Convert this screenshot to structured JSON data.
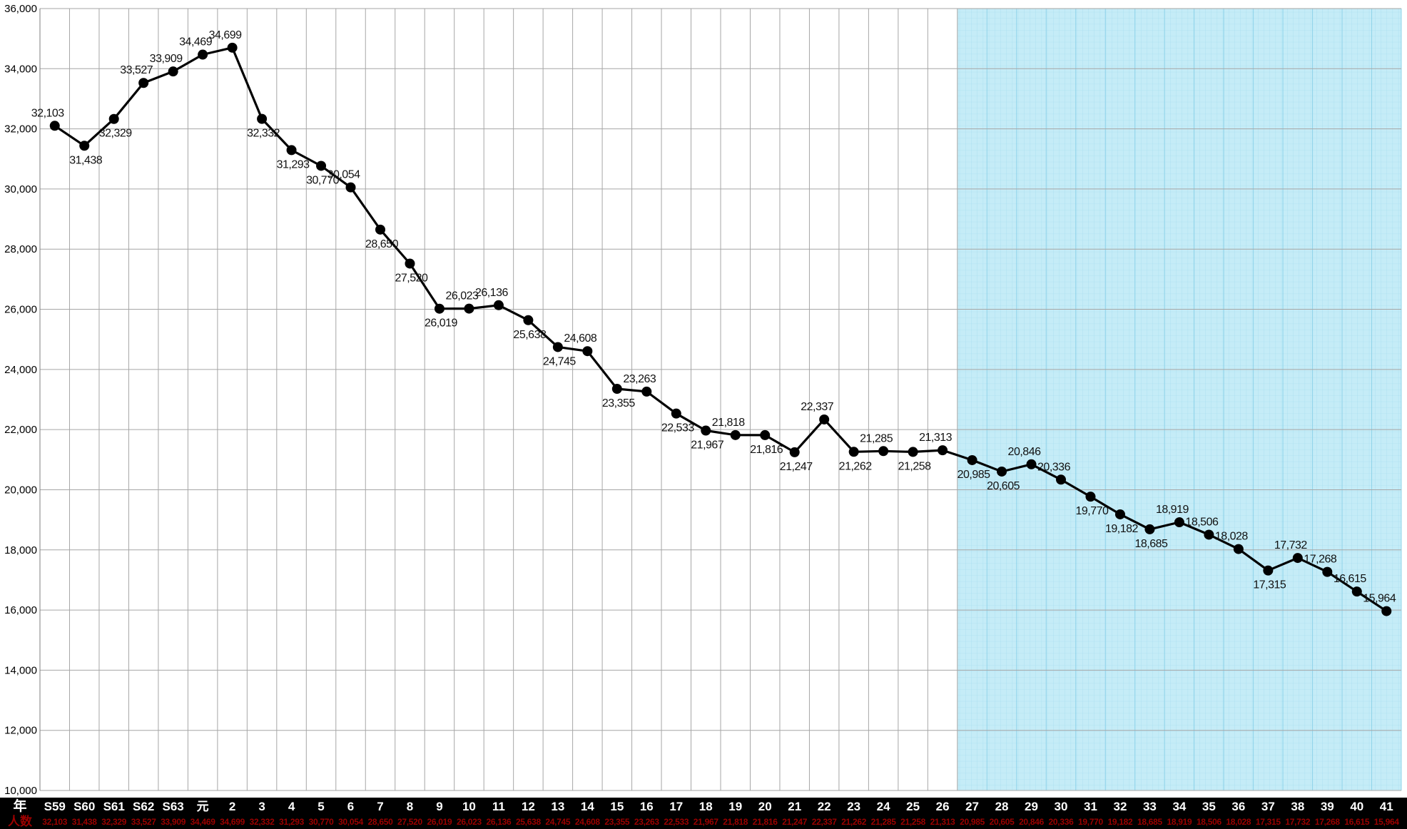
{
  "chart_data": {
    "type": "line",
    "title": "",
    "xlabel": "",
    "ylabel": "",
    "ylim": [
      10000,
      36000
    ],
    "ytick_step": 2000,
    "grid": true,
    "row_headers": {
      "year": "年",
      "count": "人数"
    },
    "categories": [
      "S59",
      "S60",
      "S61",
      "S62",
      "S63",
      "元",
      "2",
      "3",
      "4",
      "5",
      "6",
      "7",
      "8",
      "9",
      "10",
      "11",
      "12",
      "13",
      "14",
      "15",
      "16",
      "17",
      "18",
      "19",
      "20",
      "21",
      "22",
      "23",
      "24",
      "25",
      "26",
      "27",
      "28",
      "29",
      "30",
      "31",
      "32",
      "33",
      "34",
      "35",
      "36",
      "37",
      "38",
      "39",
      "40",
      "41"
    ],
    "values": [
      32103,
      31438,
      32329,
      33527,
      33909,
      34469,
      34699,
      32332,
      31293,
      30770,
      30054,
      28650,
      27520,
      26019,
      26023,
      26136,
      25638,
      24745,
      24608,
      23355,
      23263,
      22533,
      21967,
      21818,
      21816,
      21247,
      22337,
      21262,
      21285,
      21258,
      21313,
      20985,
      20605,
      20846,
      20336,
      19770,
      19182,
      18685,
      18919,
      18506,
      18028,
      17315,
      17732,
      17268,
      16615,
      15964
    ],
    "value_labels": [
      "32,103",
      "31,438",
      "32,329",
      "33,527",
      "33,909",
      "34,469",
      "34,699",
      "32,332",
      "31,293",
      "30,770",
      "30,054",
      "28,650",
      "27,520",
      "26,019",
      "26,023",
      "26,136",
      "25,638",
      "24,745",
      "24,608",
      "23,355",
      "23,263",
      "22,533",
      "21,967",
      "21,818",
      "21,816",
      "21,247",
      "22,337",
      "21,262",
      "21,285",
      "21,258",
      "21,313",
      "20,985",
      "20,605",
      "20,846",
      "20,336",
      "19,770",
      "19,182",
      "18,685",
      "18,919",
      "18,506",
      "18,028",
      "17,315",
      "17,732",
      "17,268",
      "16,615",
      "15,964"
    ],
    "label_positions": [
      "above",
      "below",
      "below",
      "above",
      "above",
      "above",
      "above",
      "below",
      "below",
      "below",
      "above",
      "below",
      "below",
      "below",
      "above",
      "above",
      "below",
      "below",
      "above",
      "below",
      "above",
      "below",
      "below",
      "above",
      "below",
      "below",
      "above",
      "below",
      "above",
      "below",
      "above",
      "below",
      "below",
      "above",
      "above",
      "below",
      "below",
      "below",
      "above",
      "above",
      "above",
      "below",
      "above",
      "above",
      "above",
      "above"
    ],
    "forecast_start_category": "27",
    "colors": {
      "line": "#000000",
      "marker": "#000000",
      "grid": "#a6a6a6",
      "forecast_fill": "#c5ecf7",
      "forecast_grid": "#8fd3ea",
      "table_bg": "#000000",
      "year_text": "#ffffff",
      "count_text": "#9b0000"
    }
  }
}
